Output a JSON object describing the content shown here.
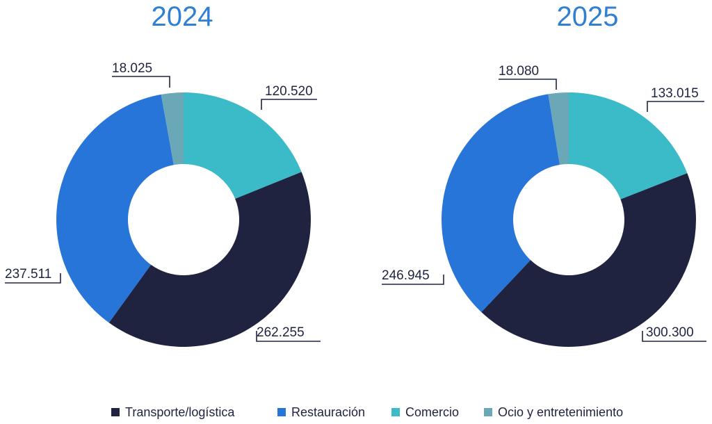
{
  "colors": {
    "Transporte/logística": "#1f2340",
    "Restauración": "#2775d8",
    "Comercio": "#3bbac7",
    "Ocio y entretenimiento": "#6aa8b8",
    "title": "#2f7fd3",
    "text": "#1f2340"
  },
  "chart_data": [
    {
      "type": "pie",
      "style": "donut",
      "title": "2024",
      "slices": [
        {
          "label": "Comercio",
          "value": 120520,
          "display": "120.520"
        },
        {
          "label": "Transporte/logística",
          "value": 262255,
          "display": "262.255"
        },
        {
          "label": "Restauración",
          "value": 237511,
          "display": "237.511"
        },
        {
          "label": "Ocio y entretenimiento",
          "value": 18025,
          "display": "18.025"
        }
      ]
    },
    {
      "type": "pie",
      "style": "donut",
      "title": "2025",
      "slices": [
        {
          "label": "Comercio",
          "value": 133015,
          "display": "133.015"
        },
        {
          "label": "Transporte/logística",
          "value": 300300,
          "display": "300.300"
        },
        {
          "label": "Restauración",
          "value": 246945,
          "display": "246.945"
        },
        {
          "label": "Ocio y entretenimiento",
          "value": 18080,
          "display": "18.080"
        }
      ]
    }
  ],
  "legend": {
    "placement": "bottom-center",
    "items": [
      "Transporte/logística",
      "Restauración",
      "Comercio",
      "Ocio y entretenimiento"
    ]
  }
}
